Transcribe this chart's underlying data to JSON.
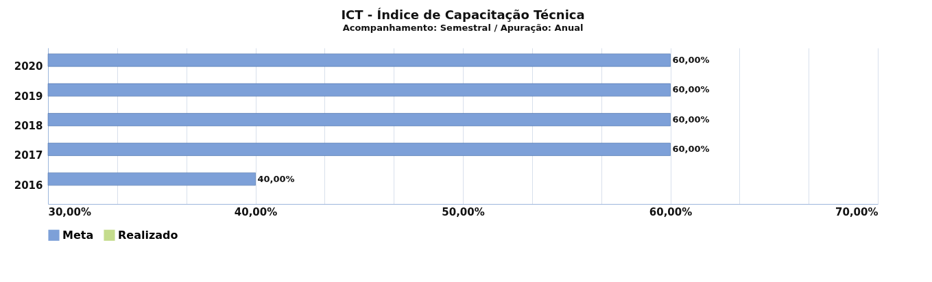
{
  "chart_data": {
    "type": "bar",
    "orientation": "horizontal",
    "title": "ICT - Índice de Capacitação Técnica",
    "subtitle": "Acompanhamento: Semestral /  Apuração: Anual",
    "categories": [
      "2020",
      "2019",
      "2018",
      "2017",
      "2016"
    ],
    "series": [
      {
        "name": "Meta",
        "color": "#7da0d8",
        "values": [
          60,
          60,
          60,
          60,
          40
        ],
        "value_labels": [
          "60,00%",
          "60,00%",
          "60,00%",
          "60,00%",
          "40,00%"
        ]
      },
      {
        "name": "Realizado",
        "color": "#c4dc8c",
        "values": [
          null,
          null,
          null,
          null,
          null
        ]
      }
    ],
    "xlim": [
      30,
      70
    ],
    "xticks": [
      {
        "value": 30,
        "label": "30,00%"
      },
      {
        "value": 33.33,
        "label": null
      },
      {
        "value": 36.67,
        "label": null
      },
      {
        "value": 40,
        "label": "40,00%"
      },
      {
        "value": 43.33,
        "label": null
      },
      {
        "value": 46.67,
        "label": null
      },
      {
        "value": 50,
        "label": "50,00%"
      },
      {
        "value": 53.33,
        "label": null
      },
      {
        "value": 56.67,
        "label": null
      },
      {
        "value": 60,
        "label": "60,00%"
      },
      {
        "value": 63.33,
        "label": null
      },
      {
        "value": 66.67,
        "label": null
      },
      {
        "value": 70,
        "label": "70,00%"
      }
    ],
    "grid": "x",
    "legend": "bottom"
  }
}
